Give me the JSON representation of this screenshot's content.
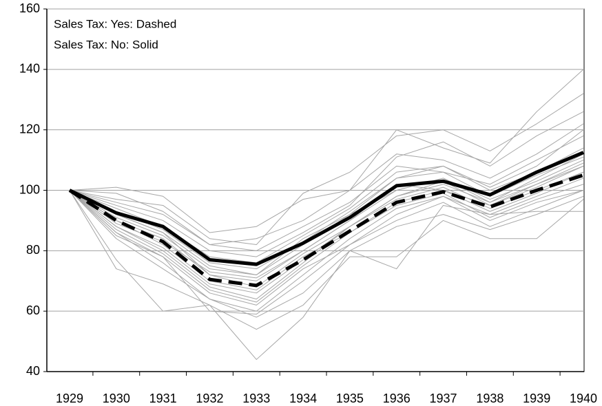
{
  "chart_data": {
    "type": "line",
    "annotations": [
      "Sales Tax: Yes: Dashed",
      "Sales Tax: No: Solid"
    ],
    "categories": [
      "1929",
      "1930",
      "1931",
      "1932",
      "1933",
      "1934",
      "1935",
      "1936",
      "1937",
      "1938",
      "1939",
      "1940"
    ],
    "ylim": [
      40,
      160
    ],
    "yticks": [
      40,
      60,
      80,
      100,
      120,
      140,
      160
    ],
    "grid": true,
    "series": [
      {
        "color": "#a6a6a6",
        "values": [
          100,
          101,
          98,
          86,
          88,
          97,
          100,
          120,
          114,
          109,
          126,
          140
        ]
      },
      {
        "color": "#a6a6a6",
        "values": [
          100,
          97,
          95,
          84,
          82,
          99,
          106,
          118,
          120,
          113,
          122,
          132
        ]
      },
      {
        "color": "#a6a6a6",
        "values": [
          100,
          74,
          69,
          62,
          44,
          58,
          80,
          74,
          95,
          92,
          93,
          93
        ]
      },
      {
        "color": "#a6a6a6",
        "values": [
          100,
          77,
          60,
          62,
          54,
          62,
          78,
          78,
          90,
          84,
          84,
          97
        ]
      },
      {
        "color": "#a6a6a6",
        "values": [
          100,
          95,
          90,
          80,
          78,
          86,
          95,
          111,
          116,
          108,
          118,
          126
        ]
      },
      {
        "color": "#a6a6a6",
        "values": [
          100,
          92,
          86,
          75,
          72,
          82,
          92,
          104,
          108,
          101,
          108,
          120
        ]
      },
      {
        "color": "#a6a6a6",
        "values": [
          100,
          88,
          80,
          68,
          64,
          76,
          88,
          98,
          102,
          96,
          102,
          108
        ]
      },
      {
        "color": "#a6a6a6",
        "values": [
          100,
          90,
          84,
          72,
          70,
          80,
          90,
          100,
          104,
          97,
          103,
          110
        ]
      },
      {
        "color": "#a6a6a6",
        "values": [
          100,
          86,
          76,
          64,
          60,
          72,
          84,
          94,
          98,
          92,
          98,
          104
        ]
      },
      {
        "color": "#a6a6a6",
        "values": [
          100,
          94,
          88,
          78,
          76,
          85,
          94,
          106,
          108,
          100,
          106,
          114
        ]
      },
      {
        "color": "#a6a6a6",
        "values": [
          100,
          85,
          78,
          66,
          62,
          74,
          82,
          90,
          96,
          88,
          94,
          100
        ]
      },
      {
        "color": "#a6a6a6",
        "values": [
          100,
          90,
          82,
          70,
          67,
          78,
          86,
          96,
          100,
          93,
          99,
          106
        ]
      },
      {
        "color": "#a6a6a6",
        "values": [
          100,
          96,
          92,
          82,
          80,
          88,
          96,
          108,
          106,
          102,
          110,
          118
        ]
      },
      {
        "color": "#a6a6a6",
        "values": [
          100,
          84,
          74,
          64,
          58,
          66,
          80,
          88,
          92,
          87,
          92,
          98
        ]
      },
      {
        "color": "#a6a6a6",
        "values": [
          100,
          89,
          83,
          73,
          71,
          80,
          90,
          102,
          100,
          95,
          101,
          108
        ]
      },
      {
        "color": "#a6a6a6",
        "values": [
          100,
          91,
          85,
          74,
          72,
          84,
          92,
          100,
          104,
          96,
          104,
          112
        ]
      },
      {
        "color": "#a6a6a6",
        "values": [
          100,
          87,
          79,
          67,
          63,
          75,
          86,
          95,
          99,
          91,
          97,
          102
        ]
      },
      {
        "color": "#a6a6a6",
        "values": [
          100,
          93,
          87,
          76,
          74,
          83,
          93,
          104,
          106,
          98,
          105,
          111
        ]
      },
      {
        "color": "#a6a6a6",
        "values": [
          100,
          88,
          81,
          69,
          66,
          77,
          88,
          97,
          101,
          94,
          100,
          106
        ]
      },
      {
        "color": "#a6a6a6",
        "values": [
          100,
          92,
          86,
          72,
          68,
          79,
          88,
          98,
          103,
          95,
          102,
          109
        ]
      },
      {
        "color": "#a6a6a6",
        "values": [
          100,
          99,
          93,
          82,
          84,
          90,
          100,
          112,
          110,
          104,
          112,
          122
        ]
      },
      {
        "color": "#a6a6a6",
        "values": [
          100,
          86,
          78,
          60,
          59,
          70,
          82,
          92,
          98,
          90,
          96,
          100
        ]
      },
      {
        "color": "#000000",
        "linewidth": 5,
        "style": "solid",
        "values": [
          100,
          92.5,
          88,
          77,
          75.5,
          82.5,
          91,
          101.5,
          103,
          98.5,
          106,
          112.5
        ]
      },
      {
        "color": "#000000",
        "linewidth": 5,
        "style": "dashed",
        "values": [
          100,
          90,
          83,
          70.5,
          68.5,
          77,
          86.5,
          96,
          99.5,
          94.5,
          100,
          105
        ]
      }
    ]
  }
}
